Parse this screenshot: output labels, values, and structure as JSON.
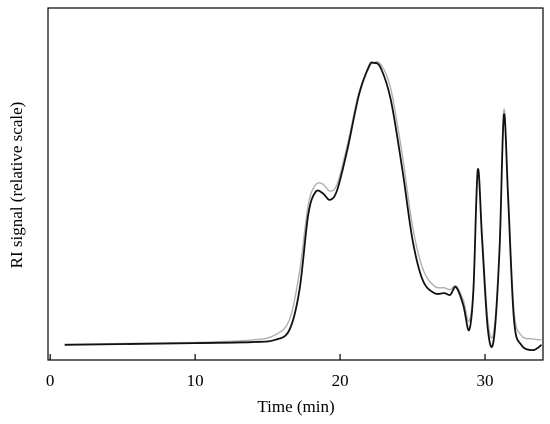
{
  "chart_data": {
    "type": "line",
    "x_label": "Time (min)",
    "y_label": "RI signal (relative scale)",
    "xlim": [
      -0.15,
      34.0
    ],
    "xticks": [
      0,
      10,
      20,
      30
    ],
    "ylim": [
      0,
      1
    ],
    "x": [
      1,
      10,
      14,
      15.5,
      16.5,
      17.2,
      17.8,
      18.3,
      18.8,
      19.3,
      19.8,
      20.5,
      21.3,
      22,
      22.3,
      22.8,
      23.5,
      24.3,
      25,
      25.7,
      26.5,
      27.2,
      27.6,
      28,
      28.5,
      28.9,
      29.2,
      29.5,
      29.8,
      30.2,
      30.6,
      31,
      31.3,
      31.6,
      32,
      32.5,
      33.3,
      33.9
    ],
    "series": [
      {
        "color": "#b0b0b0",
        "values": [
          0.045,
          0.05,
          0.057,
          0.071,
          0.114,
          0.25,
          0.44,
          0.497,
          0.5,
          0.48,
          0.5,
          0.61,
          0.76,
          0.83,
          0.844,
          0.84,
          0.77,
          0.58,
          0.38,
          0.26,
          0.21,
          0.205,
          0.2,
          0.21,
          0.17,
          0.11,
          0.21,
          0.54,
          0.36,
          0.11,
          0.08,
          0.32,
          0.71,
          0.47,
          0.14,
          0.07,
          0.06,
          0.057
        ]
      },
      {
        "color": "#111111",
        "values": [
          0.043,
          0.048,
          0.051,
          0.057,
          0.085,
          0.199,
          0.412,
          0.477,
          0.474,
          0.455,
          0.483,
          0.597,
          0.753,
          0.835,
          0.844,
          0.83,
          0.739,
          0.54,
          0.341,
          0.227,
          0.19,
          0.19,
          0.185,
          0.207,
          0.156,
          0.085,
          0.199,
          0.54,
          0.341,
          0.085,
          0.057,
          0.313,
          0.696,
          0.455,
          0.114,
          0.043,
          0.028,
          0.043
        ]
      }
    ]
  }
}
